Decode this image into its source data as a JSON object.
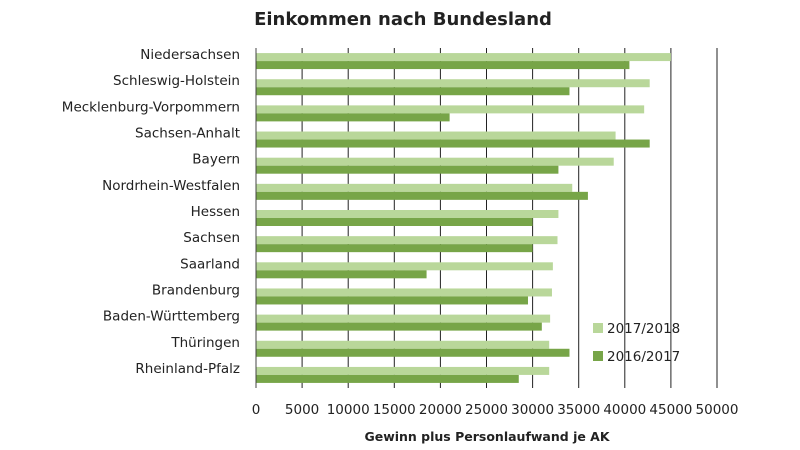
{
  "chart_data": {
    "type": "bar",
    "orientation": "horizontal",
    "title": "Einkommen nach Bundesland",
    "xlabel": "Gewinn plus Personlaufwand je AK",
    "ylabel": "",
    "xlim": [
      0,
      50000
    ],
    "xticks": [
      0,
      5000,
      10000,
      15000,
      20000,
      25000,
      30000,
      35000,
      40000,
      45000,
      50000
    ],
    "grid": "vertical",
    "legend_position": "bottom-right",
    "categories": [
      "Niedersachsen",
      "Schleswig-Holstein",
      "Mecklenburg-Vorpommern",
      "Sachsen-Anhalt",
      "Bayern",
      "Nordrhein-Westfalen",
      "Hessen",
      "Sachsen",
      "Saarland",
      "Brandenburg",
      "Baden-Württemberg",
      "Thüringen",
      "Rheinland-Pfalz"
    ],
    "series": [
      {
        "name": "2017/2018",
        "color": "#b9d79a",
        "values": [
          45000,
          42700,
          42100,
          39000,
          38800,
          34300,
          32800,
          32700,
          32200,
          32100,
          31900,
          31800,
          31800
        ]
      },
      {
        "name": "2016/2017",
        "color": "#77a548",
        "values": [
          40500,
          34000,
          21000,
          42700,
          32800,
          36000,
          30000,
          30000,
          18500,
          29500,
          31000,
          34000,
          28500
        ]
      }
    ]
  }
}
